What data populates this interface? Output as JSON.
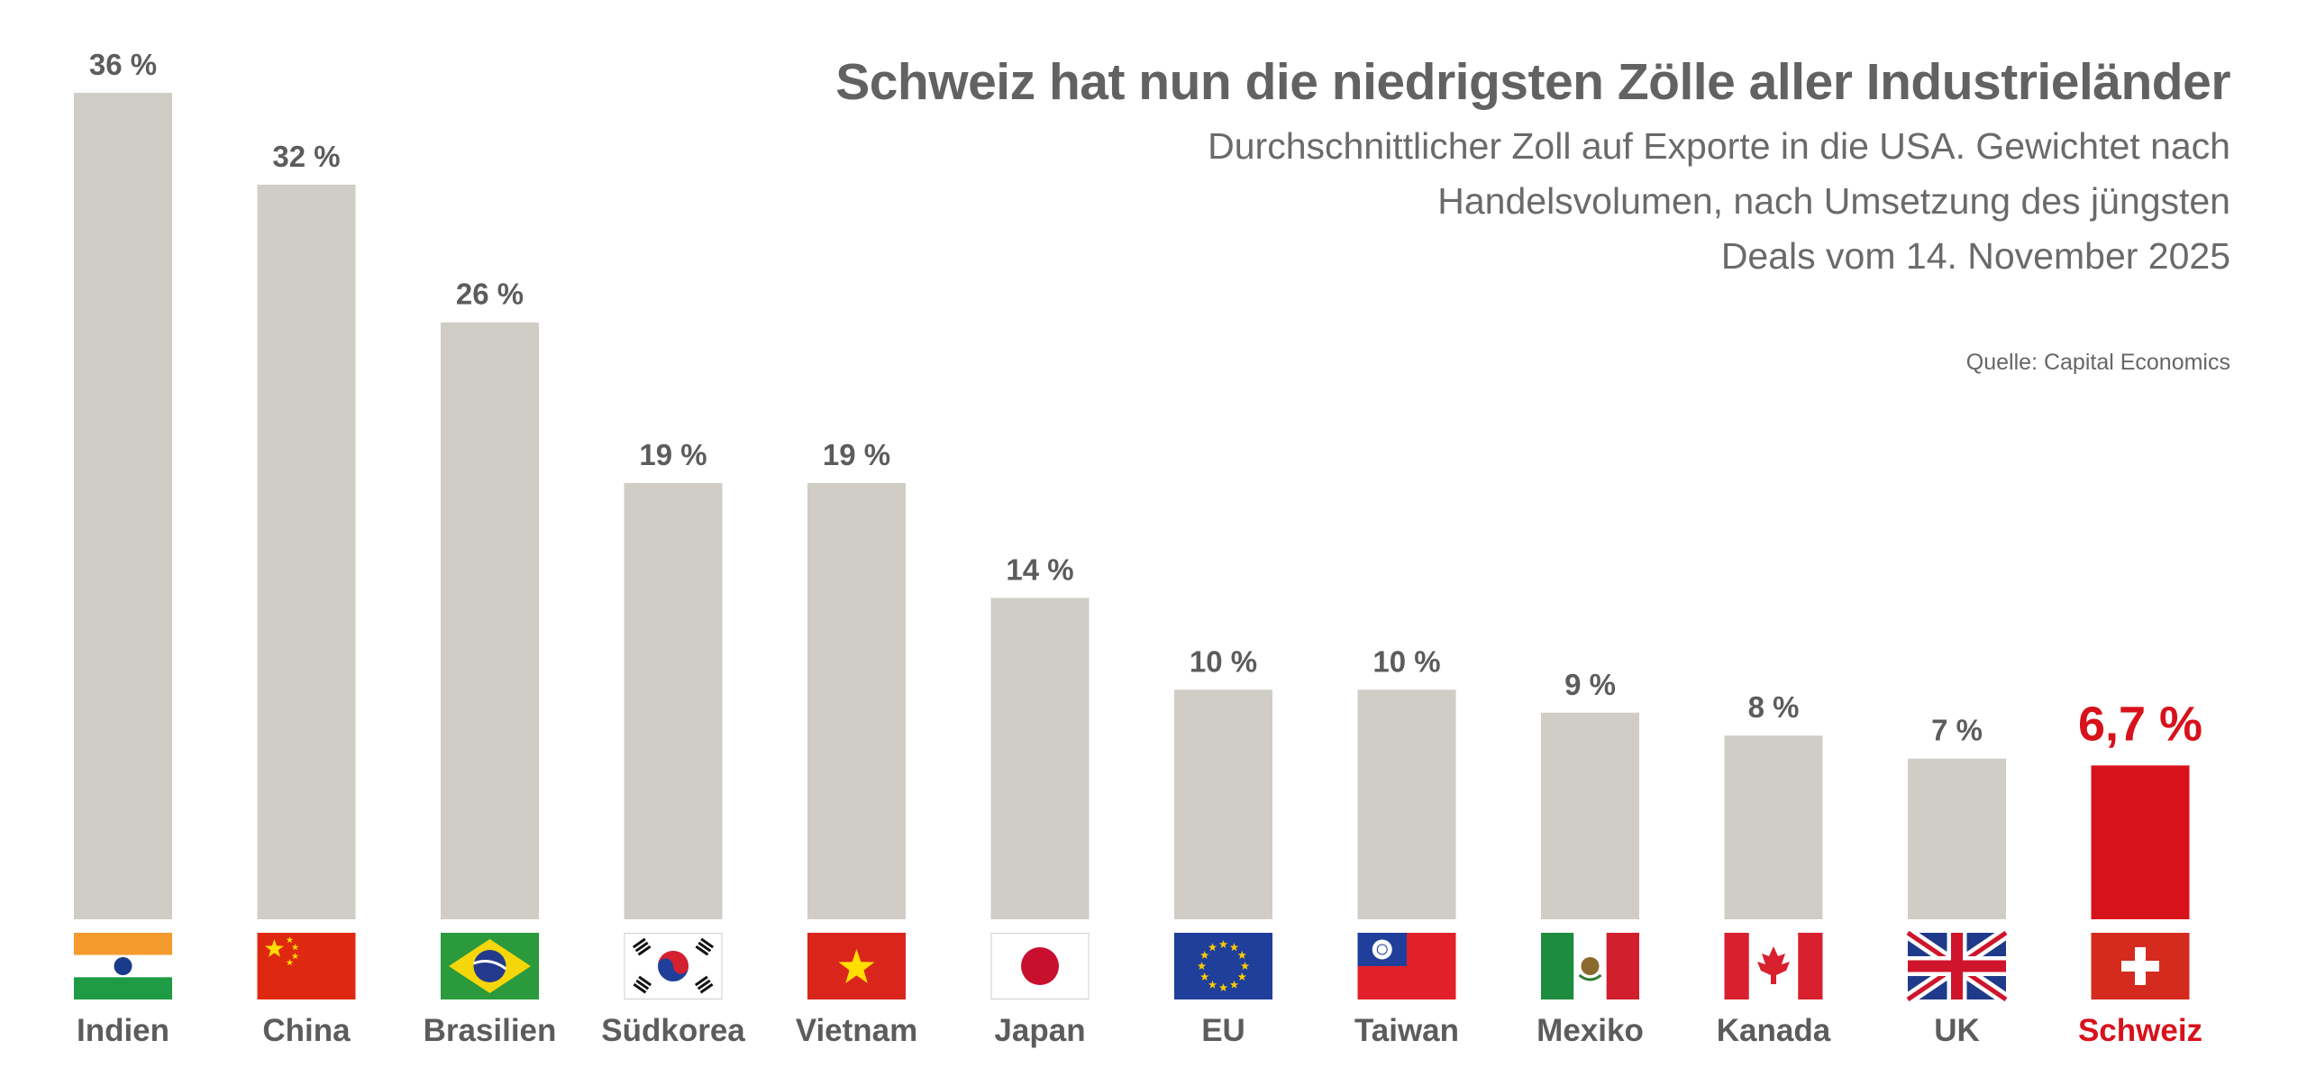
{
  "header": {
    "title": "Schweiz hat nun die niedrigsten Zölle aller Industrieländer",
    "subtitle_lines": [
      "Durchschnittlicher Zoll auf Exporte in die USA. Gewichtet nach",
      "Handelsvolumen, nach Umsetzung des jüngsten",
      "Deals vom 14. November 2025"
    ],
    "source": "Quelle: Capital Economics"
  },
  "colors": {
    "bar": "#cfcdc5",
    "highlight": "#d7121b",
    "label": "#5c5c5c"
  },
  "chart_data": {
    "type": "bar",
    "title": "Schweiz hat nun die niedrigsten Zölle aller Industrieländer",
    "xlabel": "",
    "ylabel": "",
    "ylim": [
      0,
      36
    ],
    "categories": [
      "Indien",
      "China",
      "Brasilien",
      "Südkorea",
      "Vietnam",
      "Japan",
      "EU",
      "Taiwan",
      "Mexiko",
      "Kanada",
      "UK",
      "Schweiz"
    ],
    "values": [
      36,
      32,
      26,
      19,
      19,
      14,
      10,
      10,
      9,
      8,
      7,
      6.7
    ],
    "value_labels": [
      "36 %",
      "32 %",
      "26 %",
      "19 %",
      "19 %",
      "14 %",
      "10 %",
      "10 %",
      "9 %",
      "8 %",
      "7 %",
      "6,7 %"
    ],
    "flags": [
      "india-flag-icon",
      "china-flag-icon",
      "brazil-flag-icon",
      "south-korea-flag-icon",
      "vietnam-flag-icon",
      "japan-flag-icon",
      "eu-flag-icon",
      "taiwan-flag-icon",
      "mexico-flag-icon",
      "canada-flag-icon",
      "uk-flag-icon",
      "switzerland-flag-icon"
    ],
    "highlight": "Schweiz"
  }
}
